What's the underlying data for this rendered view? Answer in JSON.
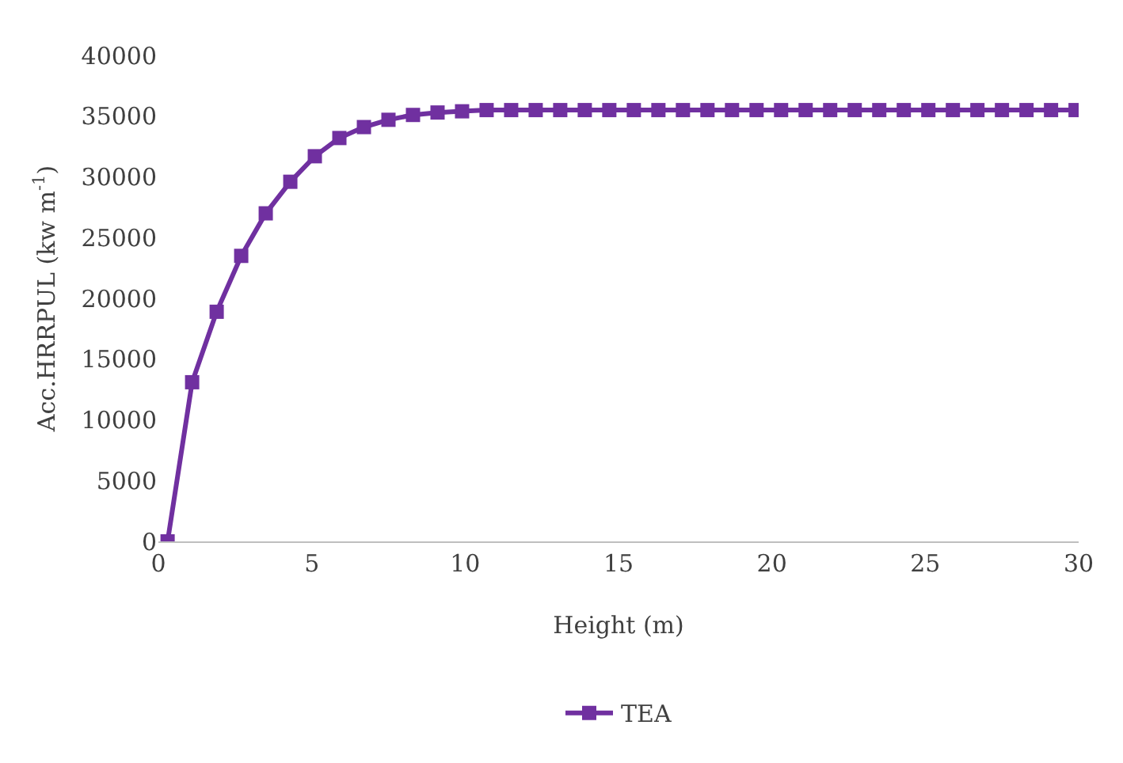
{
  "chart_data": {
    "type": "line",
    "xlabel": "Height (m)",
    "ylabel": "Acc.HRRPUL (kw m$^{-1}$)",
    "x": [
      0.3,
      1.1,
      1.9,
      2.7,
      3.5,
      4.3,
      5.1,
      5.9,
      6.7,
      7.5,
      8.3,
      9.1,
      9.9,
      10.7,
      11.5,
      12.3,
      13.1,
      13.9,
      14.7,
      15.5,
      16.3,
      17.1,
      17.9,
      18.7,
      19.5,
      20.3,
      21.1,
      21.9,
      22.7,
      23.5,
      24.3,
      25.1,
      25.9,
      26.7,
      27.5,
      28.3,
      29.1,
      29.9
    ],
    "series": [
      {
        "name": "TEA",
        "color": "#7030a0",
        "values": [
          0,
          13100,
          18900,
          23500,
          27000,
          29600,
          31700,
          33200,
          34100,
          34700,
          35100,
          35300,
          35400,
          35500,
          35500,
          35500,
          35500,
          35500,
          35500,
          35500,
          35500,
          35500,
          35500,
          35500,
          35500,
          35500,
          35500,
          35500,
          35500,
          35500,
          35500,
          35500,
          35500,
          35500,
          35500,
          35500,
          35500,
          35500
        ]
      }
    ],
    "xlim": [
      0,
      30
    ],
    "xticks": [
      0,
      5,
      10,
      15,
      20,
      25,
      30
    ],
    "ylim": [
      0,
      40000
    ],
    "yticks": [
      0,
      5000,
      10000,
      15000,
      20000,
      25000,
      30000,
      35000,
      40000
    ],
    "grid": false,
    "legend": "bottom",
    "marker": "square",
    "line_style": "solid"
  }
}
